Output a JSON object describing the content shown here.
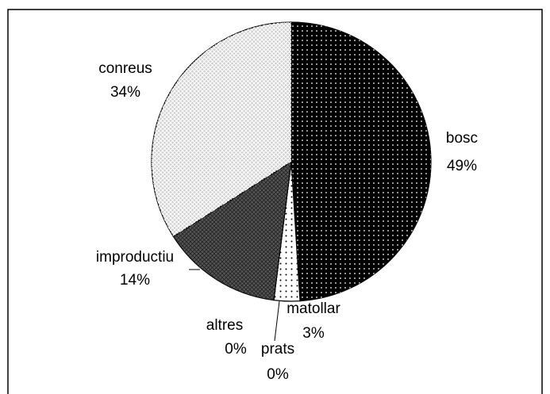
{
  "chart_data": {
    "type": "pie",
    "categories": [
      "bosc",
      "matollar",
      "prats",
      "altres",
      "improductiu",
      "conreus"
    ],
    "values": [
      49,
      3,
      0,
      0,
      14,
      34
    ],
    "value_labels": [
      "49%",
      "3%",
      "0%",
      "0%",
      "14%",
      "34%"
    ],
    "colors": [
      "#000000",
      "#ffffff",
      "#ffffff",
      "#ffffff",
      "#555555",
      "#d0d0d0"
    ]
  }
}
